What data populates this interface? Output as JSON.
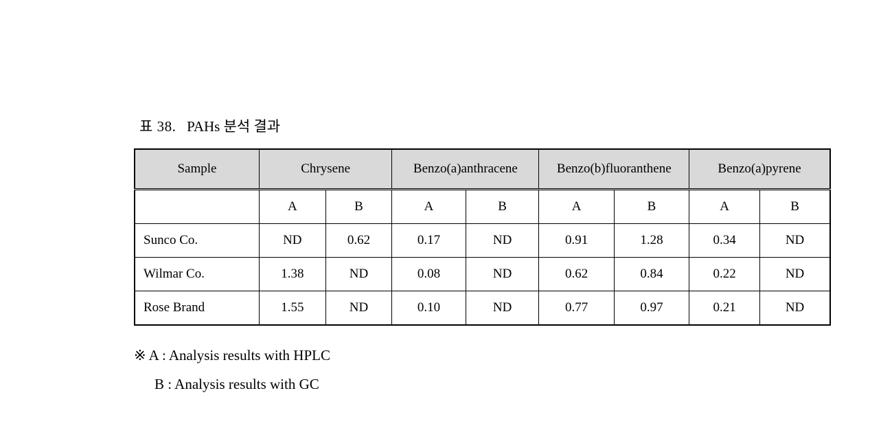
{
  "caption": {
    "prefix": "표 38.",
    "title": "PAHs 분석 결과"
  },
  "table": {
    "type": "table",
    "background_color": "#ffffff",
    "header_bg": "#d9d9d9",
    "border_color": "#000000",
    "font_family": "Times New Roman, serif",
    "header_fontsize": 19,
    "cell_fontsize": 19,
    "columns": {
      "sample_header": "Sample",
      "compounds": [
        "Chrysene",
        "Benzo(a)anthracene",
        "Benzo(b)fluoranthene",
        "Benzo(a)pyrene"
      ],
      "sub_labels": {
        "a": "A",
        "b": "B"
      }
    },
    "rows": [
      {
        "sample": "Sunco Co.",
        "chrysene": {
          "a": "ND",
          "b": "0.62"
        },
        "benzo_a_an": {
          "a": "0.17",
          "b": "ND"
        },
        "benzo_b_fl": {
          "a": "0.91",
          "b": "1.28"
        },
        "benzo_a_py": {
          "a": "0.34",
          "b": "ND"
        }
      },
      {
        "sample": "Wilmar Co.",
        "chrysene": {
          "a": "1.38",
          "b": "ND"
        },
        "benzo_a_an": {
          "a": "0.08",
          "b": "ND"
        },
        "benzo_b_fl": {
          "a": "0.62",
          "b": "0.84"
        },
        "benzo_a_py": {
          "a": "0.22",
          "b": "ND"
        }
      },
      {
        "sample": "Rose Brand",
        "chrysene": {
          "a": "1.55",
          "b": "ND"
        },
        "benzo_a_an": {
          "a": "0.10",
          "b": "ND"
        },
        "benzo_b_fl": {
          "a": "0.77",
          "b": "0.97"
        },
        "benzo_a_py": {
          "a": "0.21",
          "b": "ND"
        }
      }
    ]
  },
  "footnotes": {
    "line1": "※ A : Analysis results with HPLC",
    "line2": "B : Analysis results with GC"
  }
}
